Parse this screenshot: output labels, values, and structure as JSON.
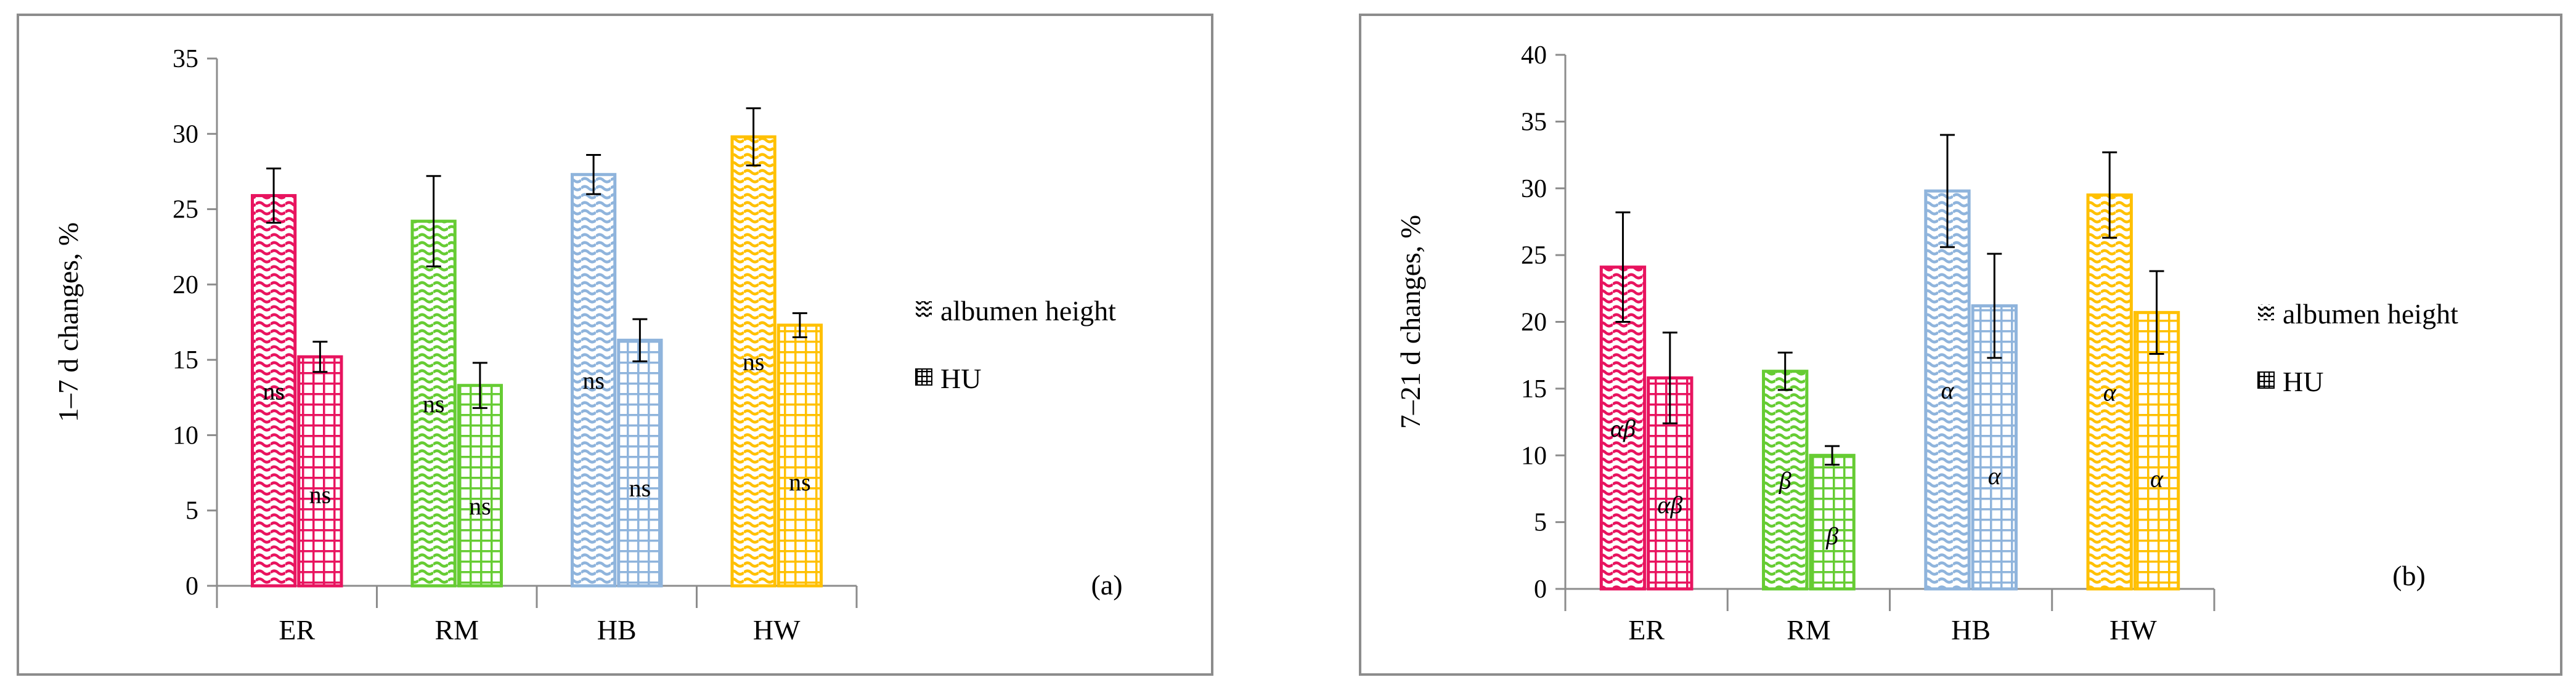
{
  "chart_data": [
    {
      "type": "bar",
      "categories": [
        "ER",
        "RM",
        "HB",
        "HW"
      ],
      "colors": [
        "#e8145f",
        "#66cc33",
        "#8fb4dc",
        "#ffc000"
      ],
      "ylabel": "1–7 d changes, %",
      "ylim": [
        0,
        35
      ],
      "yticks": [
        0,
        5,
        10,
        15,
        20,
        25,
        30,
        35
      ],
      "panel_label": "(a)",
      "legend_position": "right",
      "series": [
        {
          "name": "albumen height",
          "pattern": "wave",
          "values": [
            25.9,
            24.2,
            27.3,
            29.8
          ],
          "errors": [
            1.8,
            3.0,
            1.3,
            1.9
          ],
          "labels": [
            "ns",
            "ns",
            "ns",
            "ns"
          ]
        },
        {
          "name": "HU",
          "pattern": "grid",
          "values": [
            15.2,
            13.3,
            16.3,
            17.3
          ],
          "errors": [
            1.0,
            1.5,
            1.4,
            0.8
          ],
          "labels": [
            "ns",
            "ns",
            "ns",
            "ns"
          ]
        }
      ]
    },
    {
      "type": "bar",
      "categories": [
        "ER",
        "RM",
        "HB",
        "HW"
      ],
      "colors": [
        "#e8145f",
        "#66cc33",
        "#8fb4dc",
        "#ffc000"
      ],
      "ylabel": "7–21 d changes, %",
      "ylim": [
        0,
        40
      ],
      "yticks": [
        0,
        5,
        10,
        15,
        20,
        25,
        30,
        35,
        40
      ],
      "panel_label": "(b)",
      "legend_position": "right",
      "series": [
        {
          "name": "albumen height",
          "pattern": "wave",
          "values": [
            24.1,
            16.3,
            29.8,
            29.5
          ],
          "errors": [
            4.1,
            1.4,
            4.2,
            3.2
          ],
          "labels": [
            "αβ",
            "β",
            "α",
            "α"
          ]
        },
        {
          "name": "HU",
          "pattern": "grid",
          "values": [
            15.8,
            10.0,
            21.2,
            20.7
          ],
          "errors": [
            3.4,
            0.7,
            3.9,
            3.1
          ],
          "labels": [
            "αβ",
            "β",
            "α",
            "α"
          ]
        }
      ]
    }
  ]
}
